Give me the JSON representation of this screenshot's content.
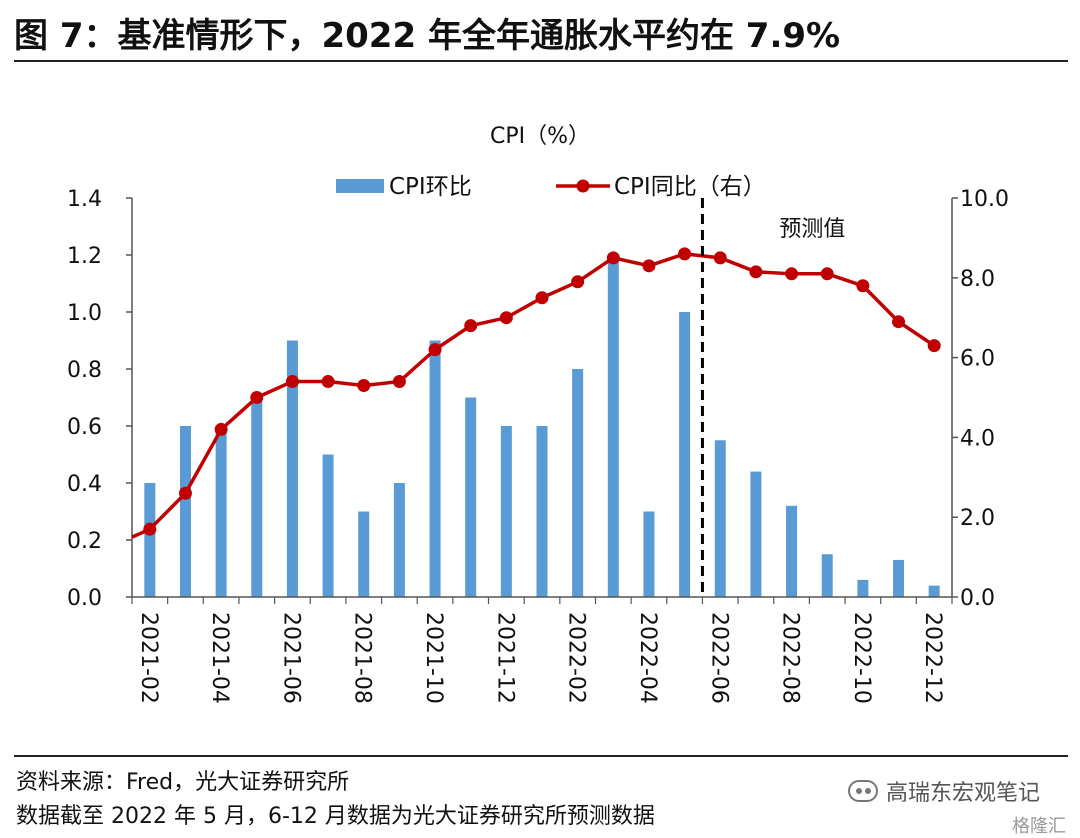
{
  "figure": {
    "title": "图 7：基准情形下，2022 年全年通胀水平约在 7.9%",
    "note_source": "资料来源：Fred，光大证券研究所",
    "note_data": "数据截至 2022 年 5 月，6-12 月数据为光大证券研究所预测数据",
    "watermark": "高瑞东宏观笔记",
    "watermark_small": "格隆汇"
  },
  "chart_data": {
    "type": "bar+line",
    "title": "CPI（%）",
    "forecast_label": "预测值",
    "categories": [
      "2021-02",
      "2021-03",
      "2021-04",
      "2021-05",
      "2021-06",
      "2021-07",
      "2021-08",
      "2021-09",
      "2021-10",
      "2021-11",
      "2021-12",
      "2022-01",
      "2022-02",
      "2022-03",
      "2022-04",
      "2022-05",
      "2022-06",
      "2022-07",
      "2022-08",
      "2022-09",
      "2022-10",
      "2022-11",
      "2022-12"
    ],
    "tick_labels": [
      "2021-02",
      "2021-04",
      "2021-06",
      "2021-08",
      "2021-10",
      "2021-12",
      "2022-02",
      "2022-04",
      "2022-06",
      "2022-08",
      "2022-10",
      "2022-12"
    ],
    "series": [
      {
        "name": "CPI环比",
        "type": "bar",
        "axis": "left",
        "color": "#5b9bd5",
        "values": [
          0.4,
          0.6,
          0.6,
          0.7,
          0.9,
          0.5,
          0.3,
          0.4,
          0.9,
          0.7,
          0.6,
          0.6,
          0.8,
          1.2,
          0.3,
          1.0,
          0.55,
          0.44,
          0.32,
          0.15,
          0.06,
          0.13,
          0.04
        ]
      },
      {
        "name": "CPI同比（右）",
        "type": "line",
        "axis": "right",
        "color": "#c00000",
        "leading_value": 1.5,
        "values": [
          1.7,
          2.6,
          4.2,
          5.0,
          5.4,
          5.4,
          5.3,
          5.4,
          6.2,
          6.8,
          7.0,
          7.5,
          7.9,
          8.5,
          8.3,
          8.6,
          8.5,
          8.15,
          8.1,
          8.1,
          7.8,
          6.9,
          6.3
        ]
      }
    ],
    "y_left": {
      "min": 0.0,
      "max": 1.4,
      "step": 0.2,
      "tick_labels": [
        "0.0",
        "0.2",
        "0.4",
        "0.6",
        "0.8",
        "1.0",
        "1.2",
        "1.4"
      ]
    },
    "y_right": {
      "min": 0.0,
      "max": 10.0,
      "step": 2.0,
      "tick_labels": [
        "0.0",
        "2.0",
        "4.0",
        "6.0",
        "8.0",
        "10.0"
      ]
    },
    "forecast_start_category": "2022-06",
    "legend_position": "top-center",
    "grid": false
  }
}
